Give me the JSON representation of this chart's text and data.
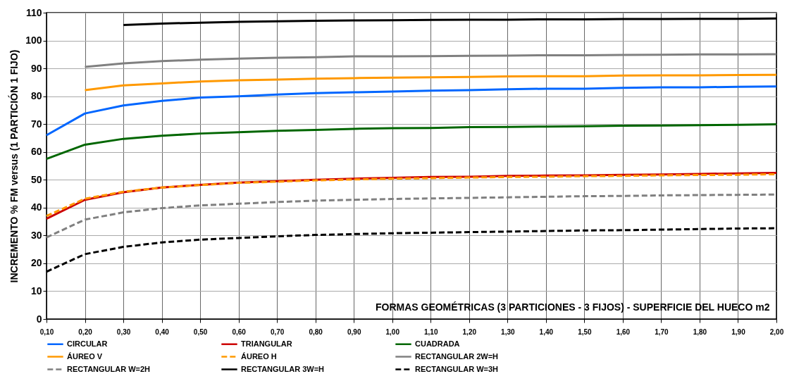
{
  "chart_data": {
    "type": "line",
    "xlabel": "FORMAS GEOMÉTRICAS (3 PARTICIONES - 3 FIJOS)  -  SUPERFICIE DEL HUECO m2",
    "ylabel": "INCREMENTO  % FM  versus (1 PARTICIÓN 1 FIJO)",
    "categories": [
      "0,10",
      "0,20",
      "0,30",
      "0,40",
      "0,50",
      "0,60",
      "0,70",
      "0,80",
      "0,90",
      "1,00",
      "1,10",
      "1,20",
      "1,30",
      "1,40",
      "1,50",
      "1,60",
      "1,70",
      "1,80",
      "1,90",
      "2,00"
    ],
    "ylim": [
      0,
      110
    ],
    "yticks": [
      0,
      10,
      20,
      30,
      40,
      50,
      60,
      70,
      80,
      90,
      100,
      110
    ],
    "grid": true,
    "legend": "bottom",
    "marker": "none",
    "series": [
      {
        "name": "CIRCULAR",
        "color": "#0066ff",
        "line_style": "solid",
        "values": [
          66,
          73.8,
          76.7,
          78.3,
          79.5,
          80,
          80.6,
          81.1,
          81.4,
          81.7,
          82,
          82.2,
          82.5,
          82.7,
          82.7,
          83,
          83.2,
          83.2,
          83.4,
          83.5
        ]
      },
      {
        "name": "TRIANGULAR",
        "color": "#cc0000",
        "line_style": "solid",
        "values": [
          36,
          42.8,
          45.5,
          47.2,
          48.2,
          49,
          49.5,
          50,
          50.4,
          50.7,
          51,
          51.1,
          51.4,
          51.5,
          51.6,
          51.8,
          51.9,
          52.1,
          52.3,
          52.5
        ]
      },
      {
        "name": "CUADRADA",
        "color": "#006600",
        "line_style": "solid",
        "values": [
          57.5,
          62.6,
          64.7,
          65.8,
          66.6,
          67.1,
          67.6,
          67.9,
          68.3,
          68.5,
          68.6,
          68.9,
          69,
          69.1,
          69.2,
          69.4,
          69.5,
          69.6,
          69.7,
          69.9
        ]
      },
      {
        "name": "ÁUREO V",
        "color": "#ff9900",
        "line_style": "solid",
        "values": [
          null,
          82.2,
          83.9,
          84.6,
          85.3,
          85.7,
          86,
          86.3,
          86.5,
          86.7,
          86.8,
          86.9,
          87.1,
          87.2,
          87.2,
          87.4,
          87.5,
          87.5,
          87.6,
          87.7
        ]
      },
      {
        "name": "ÁUREO H",
        "color": "#ff9900",
        "line_style": "dashed",
        "values": [
          37,
          43.2,
          45.7,
          47.2,
          48.1,
          48.9,
          49.3,
          49.8,
          50.1,
          50.4,
          50.6,
          50.8,
          51,
          51.1,
          51.3,
          51.4,
          51.6,
          51.7,
          51.8,
          52
        ]
      },
      {
        "name": "RECTANGULAR 2W=H",
        "color": "#808080",
        "line_style": "solid",
        "values": [
          null,
          90.5,
          91.8,
          92.6,
          93.1,
          93.5,
          93.8,
          94,
          94.3,
          94.3,
          94.4,
          94.5,
          94.6,
          94.7,
          94.7,
          94.8,
          94.9,
          95,
          95,
          95.1
        ]
      },
      {
        "name": "RECTANGULAR W=2H",
        "color": "#808080",
        "line_style": "dashed",
        "values": [
          29.3,
          35.7,
          38.3,
          39.8,
          40.8,
          41.4,
          42,
          42.5,
          42.8,
          43.1,
          43.3,
          43.5,
          43.7,
          43.9,
          44.1,
          44.2,
          44.4,
          44.5,
          44.6,
          44.7
        ]
      },
      {
        "name": "RECTANGULAR 3W=H",
        "color": "#000000",
        "line_style": "solid",
        "values": [
          null,
          null,
          105.6,
          106.1,
          106.4,
          106.7,
          106.9,
          107.1,
          107.2,
          107.3,
          107.4,
          107.5,
          107.5,
          107.6,
          107.6,
          107.7,
          107.7,
          107.8,
          107.8,
          107.9
        ]
      },
      {
        "name": "RECTANGULAR W=3H",
        "color": "#000000",
        "line_style": "dashed",
        "values": [
          17,
          23.3,
          25.9,
          27.5,
          28.5,
          29.1,
          29.7,
          30.2,
          30.5,
          30.8,
          31,
          31.2,
          31.4,
          31.6,
          31.8,
          31.9,
          32.1,
          32.3,
          32.5,
          32.6
        ]
      }
    ]
  }
}
